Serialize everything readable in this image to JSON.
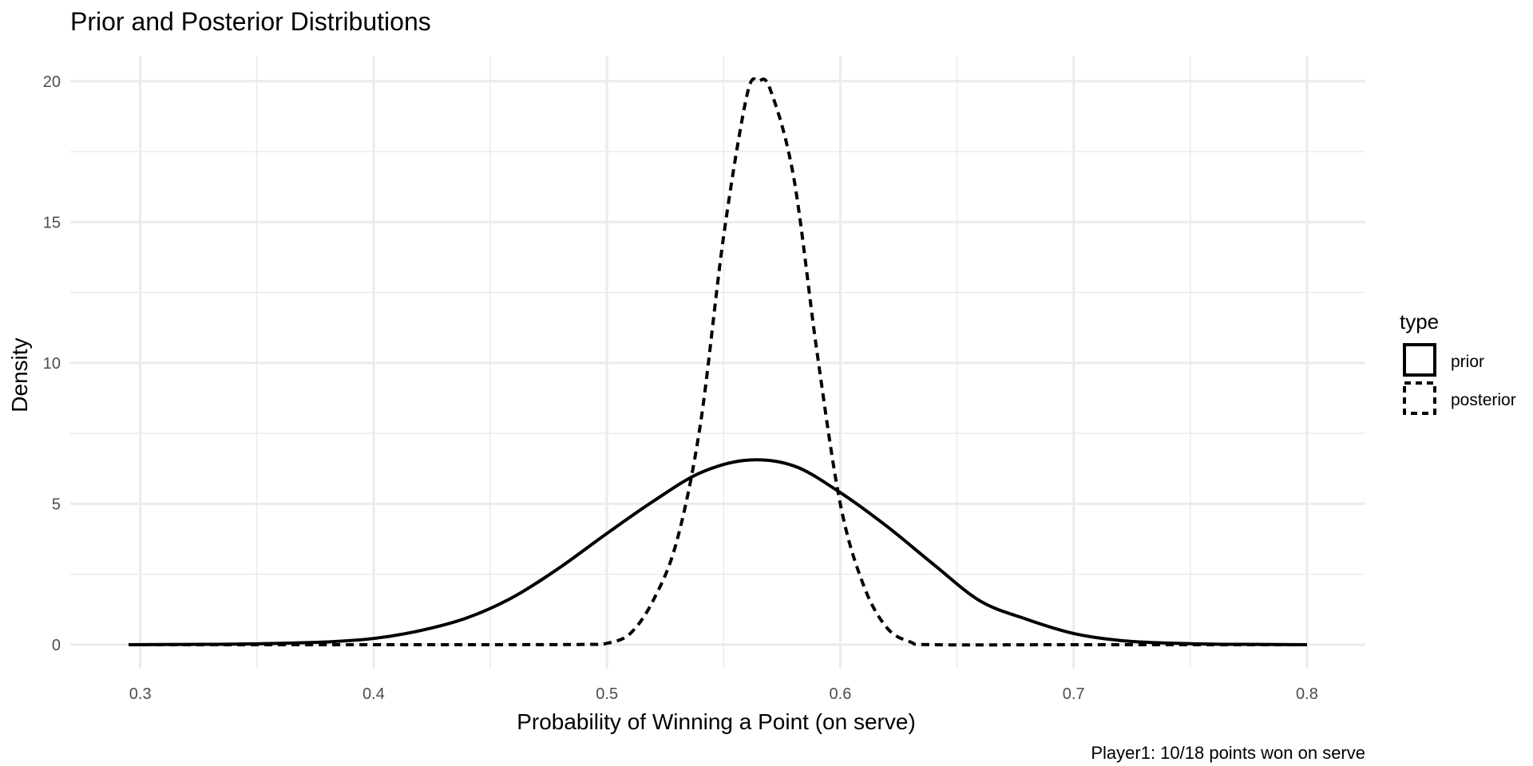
{
  "chart_data": {
    "type": "line",
    "title": "Prior and Posterior Distributions",
    "caption": "Player1: 10/18 points won on serve",
    "xlabel": "Probability of Winning a Point (on serve)",
    "ylabel": "Density",
    "xlim": [
      0.27,
      0.825
    ],
    "ylim": [
      -0.85,
      20.9
    ],
    "xticks": [
      0.3,
      0.4,
      0.5,
      0.6,
      0.7,
      0.8
    ],
    "xtick_labels": [
      "0.3",
      "0.4",
      "0.5",
      "0.6",
      "0.7",
      "0.8"
    ],
    "yticks": [
      0,
      5,
      10,
      15,
      20
    ],
    "ytick_labels": [
      "0",
      "5",
      "10",
      "15",
      "20"
    ],
    "grid": true,
    "legend": {
      "title": "type",
      "position": "right"
    },
    "series": [
      {
        "name": "prior",
        "line_style": "solid",
        "color": "#000000",
        "x": [
          0.295,
          0.32,
          0.34,
          0.36,
          0.38,
          0.4,
          0.42,
          0.44,
          0.46,
          0.48,
          0.5,
          0.52,
          0.54,
          0.56,
          0.58,
          0.6,
          0.62,
          0.64,
          0.66,
          0.68,
          0.7,
          0.72,
          0.74,
          0.76,
          0.78,
          0.8
        ],
        "y": [
          0.0,
          0.01,
          0.02,
          0.05,
          0.1,
          0.22,
          0.5,
          0.95,
          1.7,
          2.75,
          3.95,
          5.1,
          6.1,
          6.55,
          6.35,
          5.4,
          4.2,
          2.85,
          1.55,
          0.9,
          0.4,
          0.15,
          0.06,
          0.02,
          0.01,
          0.0
        ]
      },
      {
        "name": "posterior",
        "line_style": "dashed",
        "color": "#000000",
        "x": [
          0.295,
          0.4,
          0.45,
          0.49,
          0.5,
          0.51,
          0.52,
          0.53,
          0.54,
          0.55,
          0.56,
          0.565,
          0.57,
          0.58,
          0.59,
          0.6,
          0.61,
          0.62,
          0.63,
          0.64,
          0.7,
          0.8
        ],
        "y": [
          0.0,
          0.0,
          0.0,
          0.01,
          0.05,
          0.4,
          1.6,
          3.7,
          7.8,
          14.5,
          19.5,
          20.0,
          19.7,
          16.6,
          10.4,
          5.0,
          2.1,
          0.6,
          0.1,
          0.0,
          0.0,
          0.0
        ]
      }
    ]
  }
}
